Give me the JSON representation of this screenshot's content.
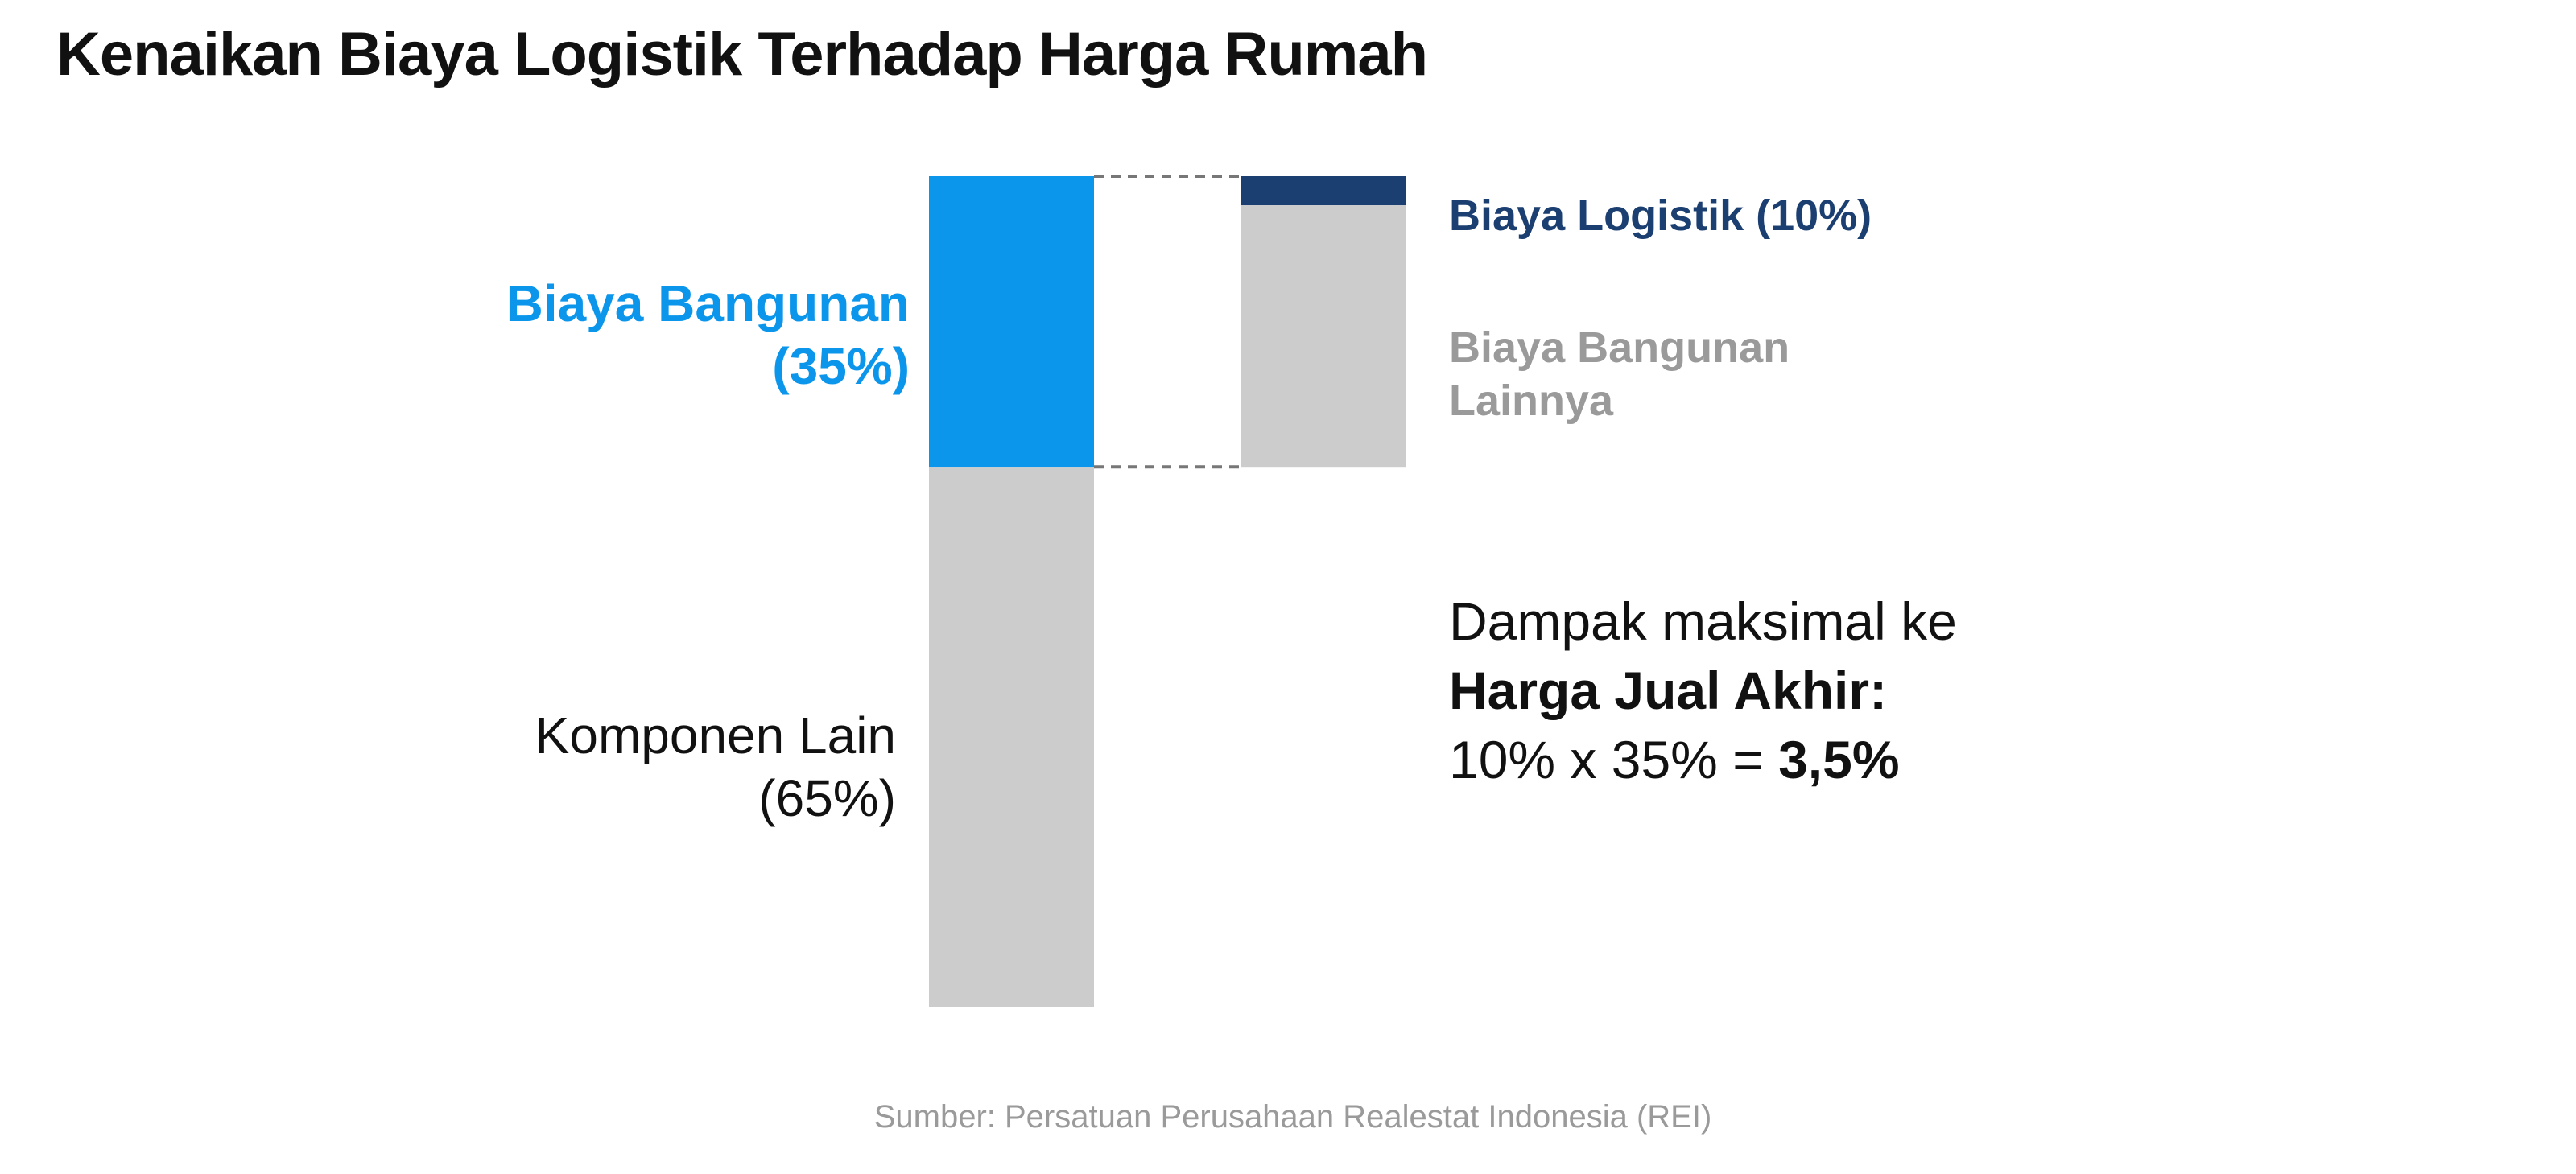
{
  "chart_data": {
    "type": "bar_of_bar",
    "title": "Kenaikan Biaya Logistik Terhadap Harga Rumah",
    "main": {
      "names": [
        "Biaya Bangunan",
        "Komponen Lain"
      ],
      "values": [
        35,
        65
      ],
      "value_labels": [
        "(35%)",
        "(65%)"
      ],
      "colors": [
        "#0b96eb",
        "#cccccc"
      ]
    },
    "detail": {
      "names": [
        "Biaya Logistik",
        "Biaya Bangunan Lainnya"
      ],
      "values": [
        10,
        90
      ],
      "value_labels": [
        "(10%)",
        null
      ],
      "colors": [
        "#1c3f72",
        "#cccccc"
      ]
    },
    "annotation": [
      "Dampak maksimal ke",
      "Harga Jual Akhir:",
      "10% x 35% =",
      "3,5%"
    ],
    "source": "Sumber: Persatuan Perusahaan Realestat Indonesia (REI)"
  }
}
